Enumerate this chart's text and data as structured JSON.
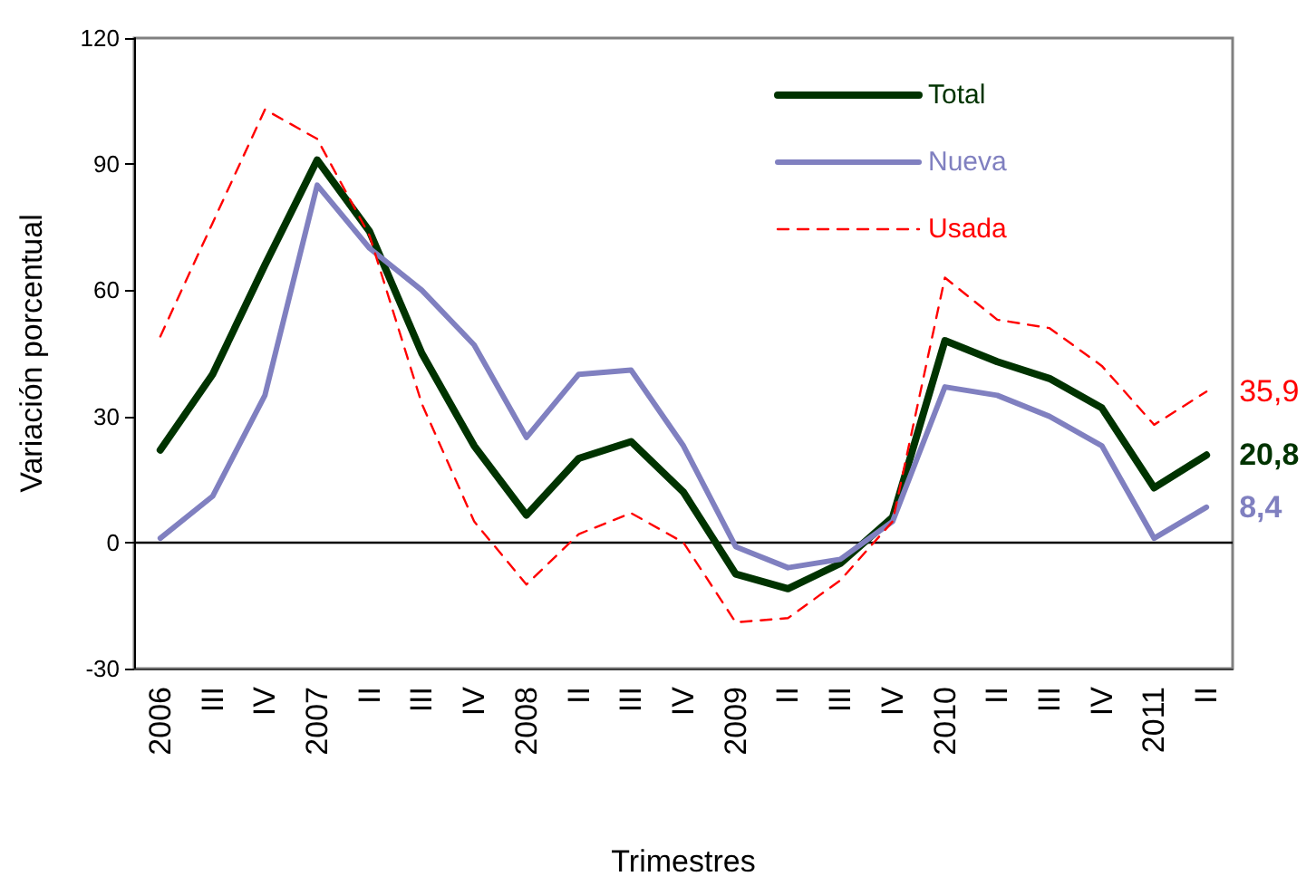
{
  "chart_data": {
    "type": "line",
    "xlabel": "Trimestres",
    "ylabel": "Variación porcentual",
    "categories": [
      "2006",
      "III",
      "IV",
      "2007",
      "II",
      "III",
      "IV",
      "2008",
      "II",
      "III",
      "IV",
      "2009",
      "II",
      "III",
      "IV",
      "2010",
      "II",
      "III",
      "IV",
      "2011",
      "II"
    ],
    "ylim": [
      -30,
      120
    ],
    "yticks": [
      -30,
      0,
      30,
      60,
      90,
      120
    ],
    "grid": false,
    "legend": "top right",
    "marker": "none",
    "ref_lines": [
      {
        "axis": "y",
        "value": 0,
        "color": "#000000"
      }
    ],
    "series": [
      {
        "name": "Total",
        "color": "#003300",
        "line_style": "solid",
        "values": [
          22,
          40,
          66,
          91,
          74,
          45,
          23,
          6.5,
          20,
          24,
          12,
          -7.5,
          -11,
          -5,
          6,
          48,
          43,
          39,
          32,
          13,
          20.8
        ],
        "value_labels": [
          null,
          null,
          null,
          null,
          null,
          null,
          null,
          null,
          null,
          null,
          null,
          null,
          null,
          null,
          null,
          null,
          null,
          null,
          null,
          null,
          "20,8"
        ]
      },
      {
        "name": "Nueva",
        "color": "#8080c0",
        "line_style": "solid",
        "values": [
          1,
          11,
          35,
          85,
          70,
          60,
          47,
          25,
          40,
          41,
          23,
          -1,
          -6,
          -4,
          5,
          37,
          35,
          30,
          23,
          1,
          8.4
        ],
        "value_labels": [
          null,
          null,
          null,
          null,
          null,
          null,
          null,
          null,
          null,
          null,
          null,
          null,
          null,
          null,
          null,
          null,
          null,
          null,
          null,
          null,
          "8,4"
        ]
      },
      {
        "name": "Usada",
        "color": "#ff0000",
        "line_style": "dashed",
        "values": [
          49,
          76,
          103,
          96,
          73,
          33,
          5,
          -10,
          2,
          7,
          0,
          -19,
          -18,
          -9,
          5,
          63,
          53,
          51,
          42,
          28,
          35.9
        ],
        "value_labels": [
          null,
          null,
          null,
          null,
          null,
          null,
          null,
          null,
          null,
          null,
          null,
          null,
          null,
          null,
          null,
          null,
          null,
          null,
          null,
          null,
          "35,9"
        ]
      }
    ]
  }
}
